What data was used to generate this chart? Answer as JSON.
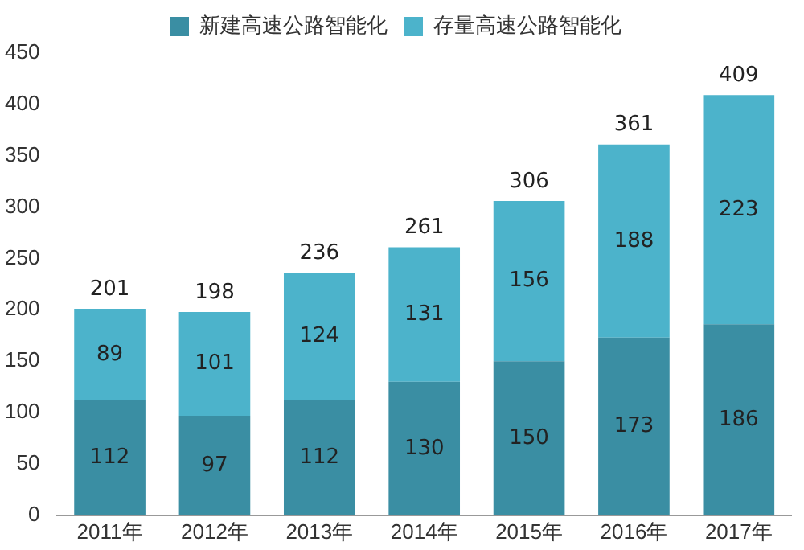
{
  "chart_data": {
    "type": "bar",
    "stacked": true,
    "categories": [
      "2011年",
      "2012年",
      "2013年",
      "2014年",
      "2015年",
      "2016年",
      "2017年"
    ],
    "series": [
      {
        "name": "新建高速公路智能化",
        "color": "#3a8ea3",
        "values": [
          112,
          97,
          112,
          130,
          150,
          173,
          186
        ]
      },
      {
        "name": "存量高速公路智能化",
        "color": "#4cb3cb",
        "values": [
          89,
          101,
          124,
          131,
          156,
          188,
          223
        ]
      }
    ],
    "ylim": [
      0,
      450
    ],
    "yticks": [
      0,
      50,
      100,
      150,
      200,
      250,
      300,
      350,
      400,
      450
    ],
    "grid": false,
    "legend": "top",
    "data_labels": true,
    "totals": [
      "201",
      "198",
      "236",
      "261",
      "306",
      "361",
      "409"
    ]
  }
}
